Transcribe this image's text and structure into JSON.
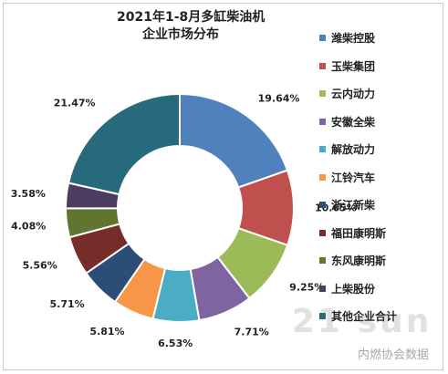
{
  "chart_data": {
    "type": "pie",
    "title": "2021年1-8月多缸柴油机",
    "subtitle": "企业市场分布",
    "categories": [
      "潍柴控股",
      "玉柴集团",
      "云内动力",
      "安徽全柴",
      "解放动力",
      "江铃汽车",
      "浙江新柴",
      "福田康明斯",
      "东风康明斯",
      "上柴股份",
      "其他企业合计"
    ],
    "values": [
      19.64,
      10.65,
      9.25,
      7.71,
      6.53,
      5.81,
      5.71,
      5.56,
      4.08,
      3.58,
      21.47
    ],
    "data_labels": [
      "19.64%",
      "10.65%",
      "9.25%",
      "7.71%",
      "6.53%",
      "5.81%",
      "5.71%",
      "5.56%",
      "4.08%",
      "3.58%",
      "21.47%"
    ],
    "colors": [
      "#4f81bd",
      "#c0504d",
      "#9bbb59",
      "#8064a2",
      "#4bacc6",
      "#f79646",
      "#2c4d75",
      "#772c2a",
      "#5f7530",
      "#4d3b62",
      "#276a7c"
    ],
    "donut": true,
    "legend_position": "right"
  },
  "watermark": {
    "main": "21 sun",
    "sub": "内燃协会数据"
  }
}
